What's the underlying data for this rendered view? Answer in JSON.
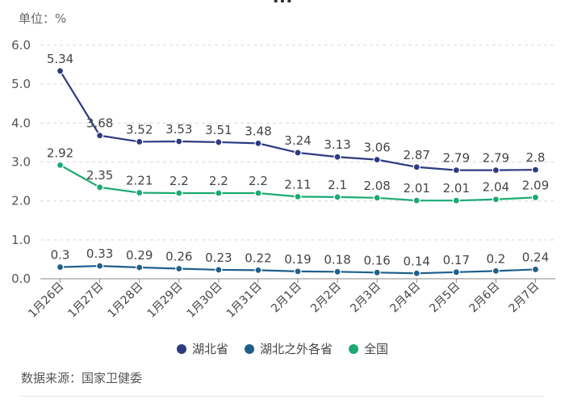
{
  "header": {
    "title_fragment": "...",
    "unit_label": "单位：%"
  },
  "chart_data": {
    "type": "line",
    "categories": [
      "1月26日",
      "1月27日",
      "1月28日",
      "1月29日",
      "1月30日",
      "1月31日",
      "2月1日",
      "2月2日",
      "2月3日",
      "2月4日",
      "2月5日",
      "2月6日",
      "2月7日"
    ],
    "ylim": [
      0,
      6
    ],
    "yticks": [
      0.0,
      1.0,
      2.0,
      3.0,
      4.0,
      5.0,
      6.0
    ],
    "ytick_labels": [
      "0.0",
      "1.0",
      "2.0",
      "3.0",
      "4.0",
      "5.0",
      "6.0"
    ],
    "grid": true,
    "legend_position": "bottom",
    "series": [
      {
        "name": "湖北省",
        "color": "#2e3a82",
        "values": [
          5.34,
          3.68,
          3.52,
          3.53,
          3.51,
          3.48,
          3.24,
          3.13,
          3.06,
          2.87,
          2.79,
          2.79,
          2.8
        ],
        "labels": [
          "5.34",
          "3.68",
          "3.52",
          "3.53",
          "3.51",
          "3.48",
          "3.24",
          "3.13",
          "3.06",
          "2.87",
          "2.79",
          "2.79",
          "2.8"
        ]
      },
      {
        "name": "湖北之外各省",
        "color": "#1f5f8b",
        "values": [
          0.3,
          0.33,
          0.29,
          0.26,
          0.23,
          0.22,
          0.19,
          0.18,
          0.16,
          0.14,
          0.17,
          0.2,
          0.24
        ],
        "labels": [
          "0.3",
          "0.33",
          "0.29",
          "0.26",
          "0.23",
          "0.22",
          "0.19",
          "0.18",
          "0.16",
          "0.14",
          "0.17",
          "0.2",
          "0.24"
        ]
      },
      {
        "name": "全国",
        "color": "#1aaa72",
        "values": [
          2.92,
          2.35,
          2.21,
          2.2,
          2.2,
          2.2,
          2.11,
          2.1,
          2.08,
          2.01,
          2.01,
          2.04,
          2.09
        ],
        "labels": [
          "2.92",
          "2.35",
          "2.21",
          "2.2",
          "2.2",
          "2.2",
          "2.11",
          "2.1",
          "2.08",
          "2.01",
          "2.01",
          "2.04",
          "2.09"
        ]
      }
    ]
  },
  "footer": {
    "source": "数据来源：国家卫健委"
  }
}
